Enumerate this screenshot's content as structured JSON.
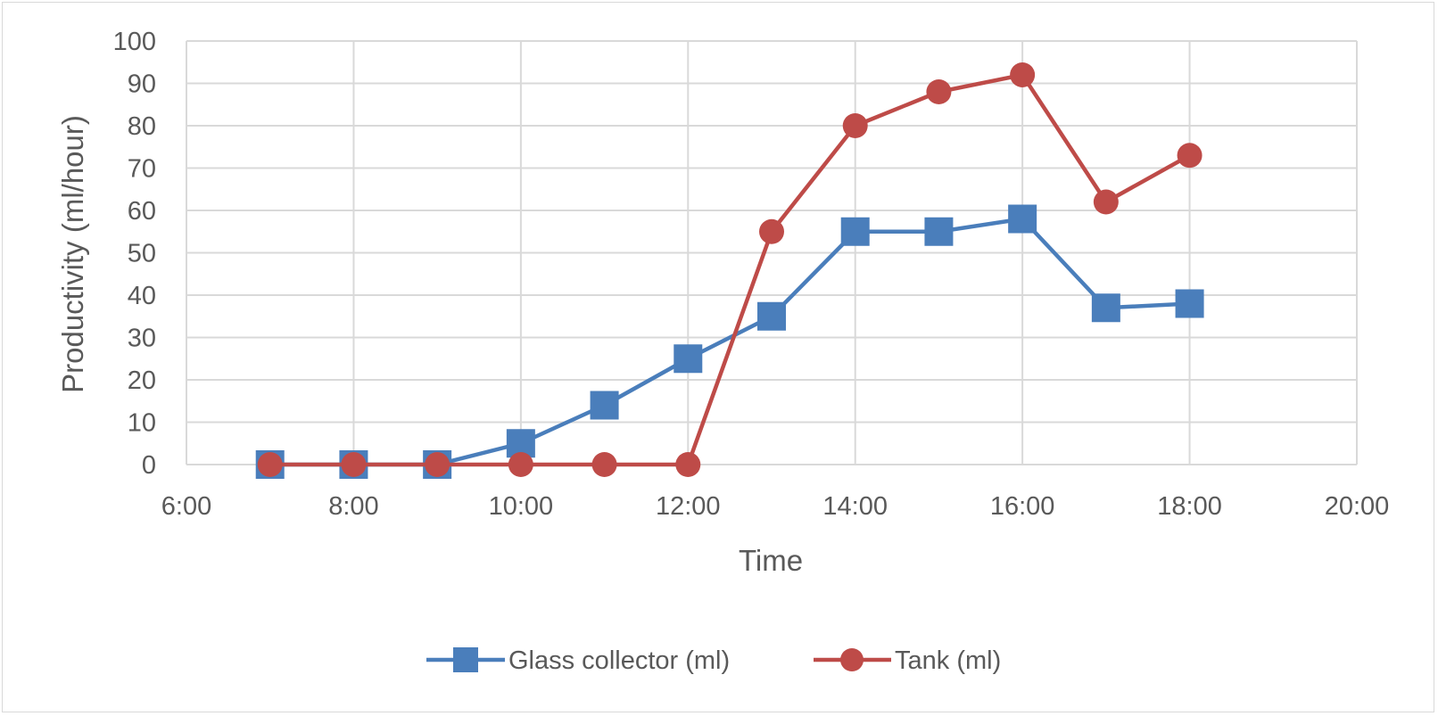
{
  "chart_data": {
    "type": "line",
    "title": "",
    "xlabel": "Time",
    "ylabel": "Productivity  (ml/hour)",
    "x_ticks": [
      "6:00",
      "8:00",
      "10:00",
      "12:00",
      "14:00",
      "16:00",
      "18:00",
      "20:00"
    ],
    "xlim": [
      "6:00",
      "20:00"
    ],
    "ylim": [
      0,
      100
    ],
    "y_ticks": [
      0,
      10,
      20,
      30,
      40,
      50,
      60,
      70,
      80,
      90,
      100
    ],
    "grid": true,
    "legend_position": "bottom",
    "x": [
      "7:00",
      "8:00",
      "9:00",
      "10:00",
      "11:00",
      "12:00",
      "13:00",
      "14:00",
      "15:00",
      "16:00",
      "17:00",
      "18:00"
    ],
    "series": [
      {
        "name": "Glass collector (ml)",
        "marker": "square",
        "color": "#4a7ebb",
        "values": [
          0,
          0,
          0,
          5,
          14,
          25,
          35,
          55,
          55,
          58,
          37,
          38
        ]
      },
      {
        "name": "Tank (ml)",
        "marker": "circle",
        "color": "#be4b48",
        "values": [
          0,
          0,
          0,
          0,
          0,
          0,
          55,
          80,
          88,
          92,
          62,
          73
        ]
      }
    ]
  }
}
